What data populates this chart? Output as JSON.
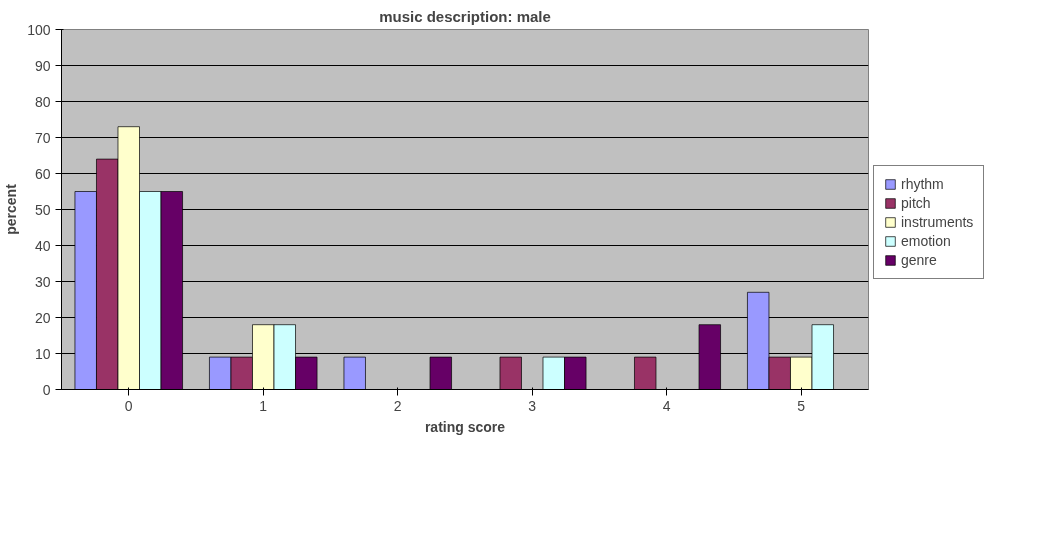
{
  "chart_data": {
    "type": "bar",
    "title": "music description: male",
    "xlabel": "rating score",
    "ylabel": "percent",
    "categories": [
      "0",
      "1",
      "2",
      "3",
      "4",
      "5"
    ],
    "series": [
      {
        "name": "rhythm",
        "color": "#9999ff",
        "values": [
          55,
          9,
          9,
          0,
          0,
          27
        ]
      },
      {
        "name": "pitch",
        "color": "#993366",
        "values": [
          64,
          9,
          0,
          9,
          9,
          9
        ]
      },
      {
        "name": "instruments",
        "color": "#ffffcc",
        "values": [
          73,
          18,
          0,
          0,
          0,
          9
        ]
      },
      {
        "name": "emotion",
        "color": "#ccffff",
        "values": [
          55,
          18,
          0,
          9,
          0,
          18
        ]
      },
      {
        "name": "genre",
        "color": "#660066",
        "values": [
          55,
          9,
          9,
          9,
          18,
          0
        ]
      }
    ],
    "ylim": [
      0,
      100
    ],
    "yticks": [
      0,
      10,
      20,
      30,
      40,
      50,
      60,
      70,
      80,
      90,
      100
    ],
    "grid": "y",
    "legend": "right"
  }
}
